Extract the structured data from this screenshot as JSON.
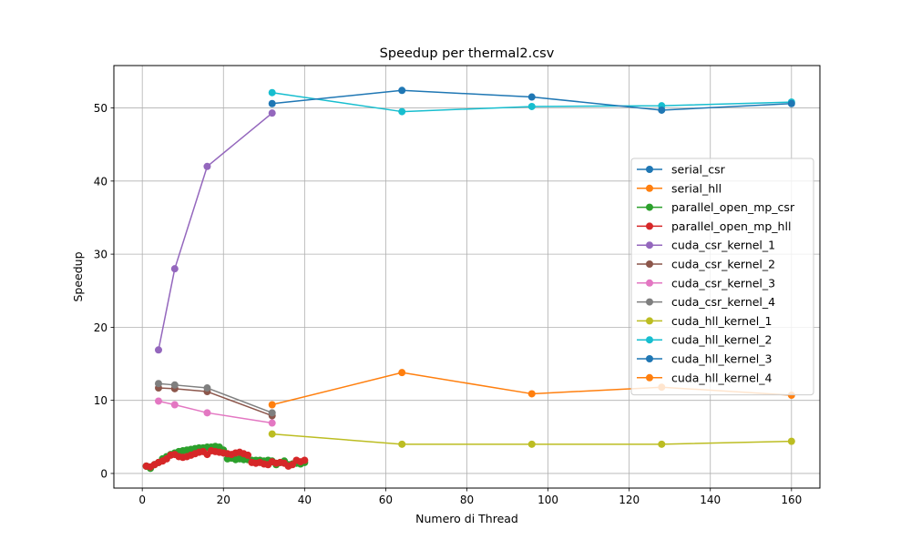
{
  "chart_data": {
    "type": "line",
    "title": "Speedup per thermal2.csv",
    "xlabel": "Numero di Thread",
    "ylabel": "Speedup",
    "xlim": [
      -7,
      167
    ],
    "ylim": [
      -2,
      55.8
    ],
    "xticks": [
      0,
      20,
      40,
      60,
      80,
      100,
      120,
      140,
      160
    ],
    "yticks": [
      0,
      10,
      20,
      30,
      40,
      50
    ],
    "grid": true,
    "legend_position": "center-right",
    "marker": "circle",
    "series": [
      {
        "name": "serial_csr",
        "color": "#1f77b4",
        "points": [
          [
            1,
            1.0
          ]
        ]
      },
      {
        "name": "serial_hll",
        "color": "#ff7f0e",
        "points": [
          [
            1,
            1.0
          ]
        ]
      },
      {
        "name": "parallel_open_mp_csr",
        "color": "#2ca02c",
        "points": [
          [
            1,
            1.0
          ],
          [
            2,
            0.7
          ],
          [
            3,
            1.2
          ],
          [
            4,
            1.5
          ],
          [
            5,
            2.0
          ],
          [
            6,
            2.3
          ],
          [
            7,
            2.6
          ],
          [
            8,
            2.8
          ],
          [
            9,
            3.0
          ],
          [
            10,
            3.1
          ],
          [
            11,
            3.2
          ],
          [
            12,
            3.3
          ],
          [
            13,
            3.4
          ],
          [
            14,
            3.5
          ],
          [
            15,
            3.5
          ],
          [
            16,
            3.6
          ],
          [
            17,
            3.6
          ],
          [
            18,
            3.7
          ],
          [
            19,
            3.6
          ],
          [
            20,
            3.2
          ],
          [
            21,
            2.0
          ],
          [
            22,
            2.1
          ],
          [
            23,
            1.9
          ],
          [
            24,
            2.0
          ],
          [
            25,
            1.9
          ],
          [
            26,
            1.9
          ],
          [
            27,
            1.8
          ],
          [
            28,
            1.8
          ],
          [
            29,
            1.8
          ],
          [
            30,
            1.7
          ],
          [
            31,
            1.8
          ],
          [
            32,
            1.7
          ],
          [
            33,
            1.2
          ],
          [
            34,
            1.5
          ],
          [
            35,
            1.7
          ],
          [
            36,
            1.2
          ],
          [
            37,
            1.3
          ],
          [
            38,
            1.4
          ],
          [
            39,
            1.3
          ],
          [
            40,
            1.5
          ]
        ]
      },
      {
        "name": "parallel_open_mp_hll",
        "color": "#d62728",
        "points": [
          [
            1,
            1.0
          ],
          [
            2,
            0.9
          ],
          [
            3,
            1.2
          ],
          [
            4,
            1.5
          ],
          [
            5,
            1.7
          ],
          [
            6,
            2.0
          ],
          [
            7,
            2.5
          ],
          [
            8,
            2.6
          ],
          [
            9,
            2.3
          ],
          [
            10,
            2.2
          ],
          [
            11,
            2.3
          ],
          [
            12,
            2.5
          ],
          [
            13,
            2.7
          ],
          [
            14,
            2.9
          ],
          [
            15,
            3.0
          ],
          [
            16,
            2.6
          ],
          [
            17,
            3.1
          ],
          [
            18,
            3.0
          ],
          [
            19,
            2.9
          ],
          [
            20,
            2.8
          ],
          [
            21,
            2.7
          ],
          [
            22,
            2.6
          ],
          [
            23,
            2.8
          ],
          [
            24,
            2.9
          ],
          [
            25,
            2.7
          ],
          [
            26,
            2.5
          ],
          [
            27,
            1.5
          ],
          [
            28,
            1.4
          ],
          [
            29,
            1.5
          ],
          [
            30,
            1.3
          ],
          [
            31,
            1.2
          ],
          [
            32,
            1.6
          ],
          [
            33,
            1.4
          ],
          [
            34,
            1.5
          ],
          [
            35,
            1.4
          ],
          [
            36,
            1.0
          ],
          [
            37,
            1.2
          ],
          [
            38,
            1.8
          ],
          [
            39,
            1.6
          ],
          [
            40,
            1.8
          ]
        ]
      },
      {
        "name": "cuda_csr_kernel_1",
        "color": "#9467bd",
        "points": [
          [
            4,
            16.9
          ],
          [
            8,
            28.0
          ],
          [
            16,
            42.0
          ],
          [
            32,
            49.3
          ]
        ]
      },
      {
        "name": "cuda_csr_kernel_2",
        "color": "#8c564b",
        "points": [
          [
            4,
            11.7
          ],
          [
            8,
            11.6
          ],
          [
            16,
            11.2
          ],
          [
            32,
            7.9
          ]
        ]
      },
      {
        "name": "cuda_csr_kernel_3",
        "color": "#e377c2",
        "points": [
          [
            4,
            9.9
          ],
          [
            8,
            9.4
          ],
          [
            16,
            8.3
          ],
          [
            32,
            6.9
          ]
        ]
      },
      {
        "name": "cuda_csr_kernel_4",
        "color": "#7f7f7f",
        "points": [
          [
            4,
            12.3
          ],
          [
            8,
            12.1
          ],
          [
            16,
            11.7
          ],
          [
            32,
            8.3
          ]
        ]
      },
      {
        "name": "cuda_hll_kernel_1",
        "color": "#bcbd22",
        "points": [
          [
            32,
            5.4
          ],
          [
            64,
            4.0
          ],
          [
            96,
            4.0
          ],
          [
            128,
            4.0
          ],
          [
            160,
            4.4
          ]
        ]
      },
      {
        "name": "cuda_hll_kernel_2",
        "color": "#17becf",
        "points": [
          [
            32,
            52.1
          ],
          [
            64,
            49.5
          ],
          [
            96,
            50.2
          ],
          [
            128,
            50.3
          ],
          [
            160,
            50.8
          ]
        ]
      },
      {
        "name": "cuda_hll_kernel_3",
        "color": "#1f77b4",
        "points": [
          [
            32,
            50.6
          ],
          [
            64,
            52.4
          ],
          [
            96,
            51.5
          ],
          [
            128,
            49.7
          ],
          [
            160,
            50.6
          ]
        ]
      },
      {
        "name": "cuda_hll_kernel_4",
        "color": "#ff7f0e",
        "points": [
          [
            32,
            9.4
          ],
          [
            64,
            13.8
          ],
          [
            96,
            10.9
          ],
          [
            128,
            11.8
          ],
          [
            160,
            10.7
          ]
        ]
      }
    ]
  }
}
